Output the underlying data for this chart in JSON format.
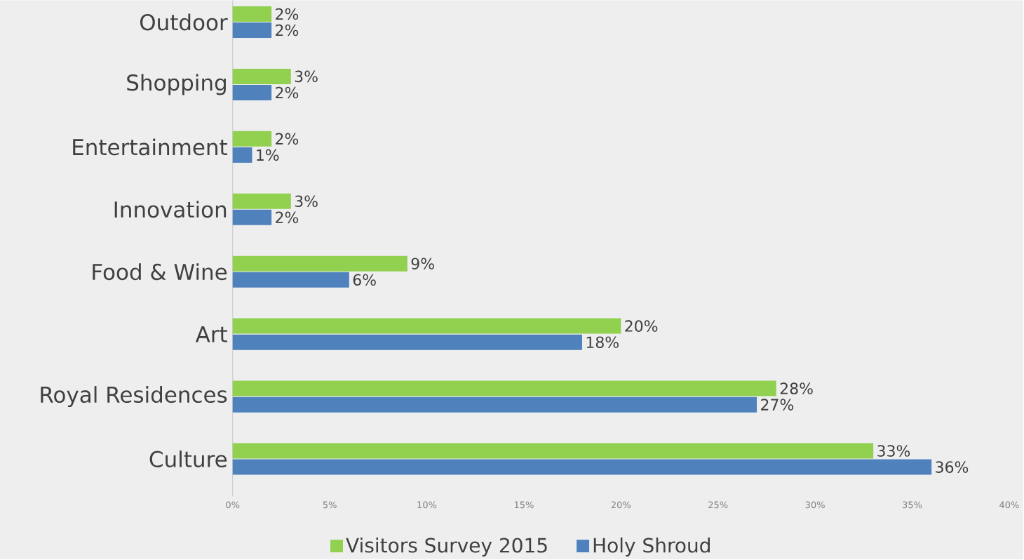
{
  "chart_data": {
    "type": "bar",
    "orientation": "horizontal",
    "categories": [
      "Outdoor",
      "Shopping",
      "Entertainment",
      "Innovation",
      "Food & Wine",
      "Art",
      "Royal Residences",
      "Culture"
    ],
    "series": [
      {
        "name": "Visitors Survey 2015",
        "color": "#92d050",
        "values": [
          2,
          3,
          2,
          3,
          9,
          20,
          28,
          33
        ],
        "value_labels": [
          "2%",
          "3%",
          "2%",
          "3%",
          "9%",
          "20%",
          "28%",
          "33%"
        ]
      },
      {
        "name": "Holy Shroud",
        "color": "#4f81bd",
        "values": [
          2,
          2,
          1,
          2,
          6,
          18,
          27,
          36
        ],
        "value_labels": [
          "2%",
          "2%",
          "1%",
          "2%",
          "6%",
          "18%",
          "27%",
          "36%"
        ]
      }
    ],
    "xlim": [
      0,
      40
    ],
    "xticks": [
      {
        "value": 0,
        "label": "0%"
      },
      {
        "value": 5,
        "label": "5%"
      },
      {
        "value": 10,
        "label": "10%"
      },
      {
        "value": 15,
        "label": "15%"
      },
      {
        "value": 20,
        "label": "20%"
      },
      {
        "value": 25,
        "label": "25%"
      },
      {
        "value": 30,
        "label": "30%"
      },
      {
        "value": 35,
        "label": "35%"
      },
      {
        "value": 40,
        "label": "40%"
      }
    ],
    "legend": "bottom"
  }
}
